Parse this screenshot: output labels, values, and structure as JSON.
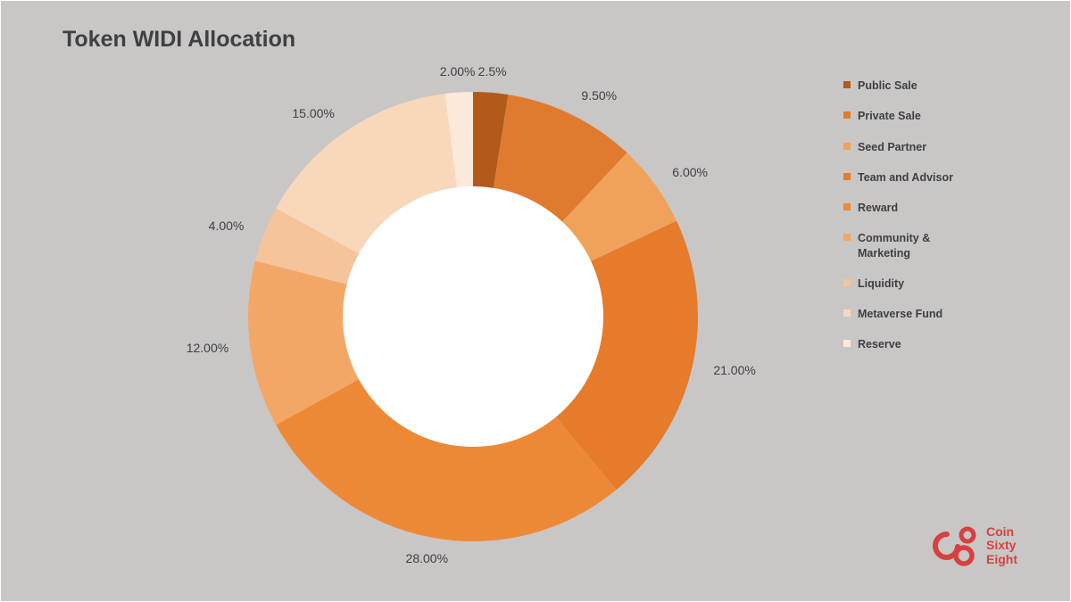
{
  "title": "Token WIDI Allocation",
  "chart": {
    "type": "donut",
    "inner_radius_ratio": 0.58,
    "background_color": "#c9c6c6",
    "hole_color": "#ffffff",
    "label_fontsize": 14,
    "label_color": "#404040",
    "slices": [
      {
        "name": "Public Sale",
        "value": 2.5,
        "label": "2.5%",
        "color": "#b15a1a"
      },
      {
        "name": "Private Sale",
        "value": 9.5,
        "label": "9.50%",
        "color": "#e07a2e"
      },
      {
        "name": "Seed Partner",
        "value": 6.0,
        "label": "6.00%",
        "color": "#f1a25a"
      },
      {
        "name": "Team and Advisor",
        "value": 21.0,
        "label": "21.00%",
        "color": "#e57b2b"
      },
      {
        "name": "Reward",
        "value": 28.0,
        "label": "28.00%",
        "color": "#ed8936"
      },
      {
        "name": "Community & Marketing",
        "value": 12.0,
        "label": "12.00%",
        "color": "#f3a766"
      },
      {
        "name": "Liquidity",
        "value": 4.0,
        "label": "4.00%",
        "color": "#f5c49b"
      },
      {
        "name": "Metaverse Fund",
        "value": 15.0,
        "label": "15.00%",
        "color": "#f8d7bb"
      },
      {
        "name": "Reserve",
        "value": 2.0,
        "label": "2.00%",
        "color": "#fbe9da"
      }
    ]
  },
  "legend": {
    "fontsize": 12.5,
    "font_weight": 600,
    "text_color": "#404040",
    "swatch_size": 8,
    "items": [
      {
        "label": "Public Sale",
        "color": "#b15a1a"
      },
      {
        "label": "Private Sale",
        "color": "#e07a2e"
      },
      {
        "label": "Seed Partner",
        "color": "#f1a25a"
      },
      {
        "label": "Team and Advisor",
        "color": "#e57b2b"
      },
      {
        "label": "Reward",
        "color": "#ed8936"
      },
      {
        "label": "Community & Marketing",
        "color": "#f3a766"
      },
      {
        "label": "Liquidity",
        "color": "#f5c49b"
      },
      {
        "label": "Metaverse Fund",
        "color": "#f8d7bb"
      },
      {
        "label": "Reserve",
        "color": "#fbe9da"
      }
    ]
  },
  "logo": {
    "brand_lines": [
      "Coin",
      "Sixty",
      "Eight"
    ],
    "color": "#d84040"
  }
}
